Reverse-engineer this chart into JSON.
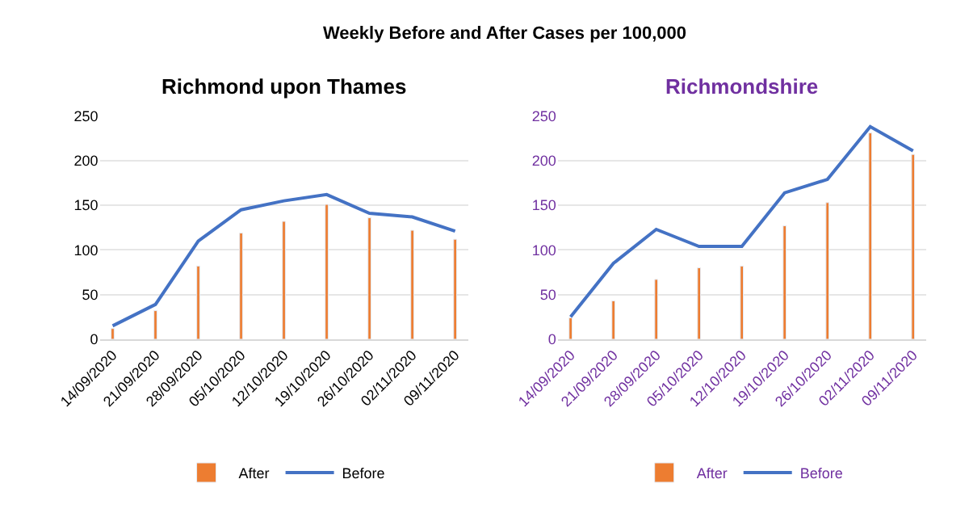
{
  "chart_data": [
    {
      "type": "bar",
      "title": "Richmond upon Thames",
      "annotations": [
        "Weekly Before and After Cases per 100,000"
      ],
      "categories": [
        "14/09/2020",
        "21/09/2020",
        "28/09/2020",
        "05/10/2020",
        "12/10/2020",
        "19/10/2020",
        "26/10/2020",
        "02/11/2020",
        "09/11/2020"
      ],
      "series": [
        {
          "name": "After",
          "color": "#ed7d31",
          "values": [
            12,
            32,
            82,
            119,
            132,
            151,
            136,
            122,
            112
          ]
        },
        {
          "name": "Before",
          "type": "line",
          "color": "#4472c4",
          "values": [
            15,
            39,
            110,
            145,
            155,
            162,
            141,
            137,
            121
          ]
        }
      ],
      "ylim": [
        0,
        250
      ],
      "yticks": [
        0,
        50,
        100,
        150,
        200,
        250
      ],
      "grid": "y",
      "legend": "bottom",
      "marker": "none"
    },
    {
      "type": "bar",
      "title": "Richmondshire",
      "categories": [
        "14/09/2020",
        "21/09/2020",
        "28/09/2020",
        "05/10/2020",
        "12/10/2020",
        "19/10/2020",
        "26/10/2020",
        "02/11/2020",
        "09/11/2020"
      ],
      "series": [
        {
          "name": "After",
          "color": "#ed7d31",
          "values": [
            24,
            43,
            67,
            80,
            82,
            127,
            153,
            231,
            207
          ]
        },
        {
          "name": "Before",
          "type": "line",
          "color": "#4472c4",
          "values": [
            25,
            85,
            123,
            104,
            104,
            164,
            179,
            238,
            211
          ]
        }
      ],
      "ylim": [
        0,
        250
      ],
      "yticks": [
        0,
        50,
        100,
        150,
        200,
        250
      ],
      "grid": "y",
      "legend": "bottom",
      "marker": "none"
    }
  ]
}
